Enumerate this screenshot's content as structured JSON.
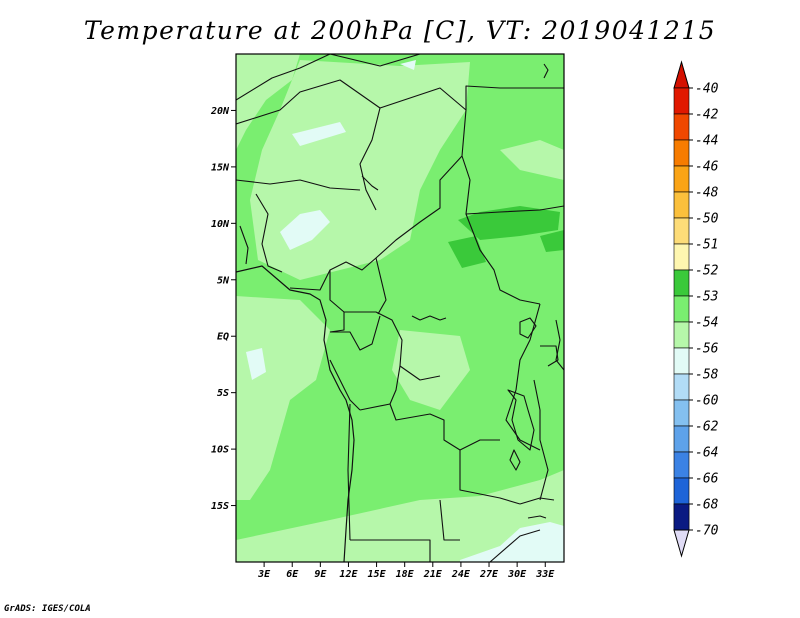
{
  "title": "Temperature at 200hPa [C], VT: 2019041215",
  "footer": "GrADS: IGES/COLA",
  "map": {
    "lon_range": [
      0,
      35
    ],
    "lat_range": [
      -20,
      25
    ],
    "lat_ticks": [
      {
        "value": 20,
        "label": "20N"
      },
      {
        "value": 15,
        "label": "15N"
      },
      {
        "value": 10,
        "label": "10N"
      },
      {
        "value": 5,
        "label": "5N"
      },
      {
        "value": 0,
        "label": "EQ"
      },
      {
        "value": -5,
        "label": "5S"
      },
      {
        "value": -10,
        "label": "10S"
      },
      {
        "value": -15,
        "label": "15S"
      }
    ],
    "lon_ticks": [
      {
        "value": 3,
        "label": "3E"
      },
      {
        "value": 6,
        "label": "6E"
      },
      {
        "value": 9,
        "label": "9E"
      },
      {
        "value": 12,
        "label": "12E"
      },
      {
        "value": 15,
        "label": "15E"
      },
      {
        "value": 18,
        "label": "18E"
      },
      {
        "value": 21,
        "label": "21E"
      },
      {
        "value": 24,
        "label": "24E"
      },
      {
        "value": 27,
        "label": "27E"
      },
      {
        "value": 30,
        "label": "30E"
      },
      {
        "value": 33,
        "label": "33E"
      }
    ],
    "field_colors": {
      "minus52": "#3ac93a",
      "minus53": "#7aee70",
      "minus54": "#b6f7aa",
      "minus56": "#e2fbf6"
    }
  },
  "colorbar": {
    "levels": [
      {
        "label": "-40",
        "color": "#e01800"
      },
      {
        "label": "-42",
        "color": "#f04800"
      },
      {
        "label": "-44",
        "color": "#f77c00"
      },
      {
        "label": "-46",
        "color": "#faa416"
      },
      {
        "label": "-48",
        "color": "#fbc03c"
      },
      {
        "label": "-50",
        "color": "#fddc78"
      },
      {
        "label": "-51",
        "color": "#fef6b0"
      },
      {
        "label": "-52",
        "color": "#3ac93a"
      },
      {
        "label": "-53",
        "color": "#7aee70"
      },
      {
        "label": "-54",
        "color": "#b6f7aa"
      },
      {
        "label": "-56",
        "color": "#e2fbf6"
      },
      {
        "label": "-58",
        "color": "#b2dcf6"
      },
      {
        "label": "-60",
        "color": "#84c0f0"
      },
      {
        "label": "-62",
        "color": "#5ea2ea"
      },
      {
        "label": "-64",
        "color": "#3b82e4"
      },
      {
        "label": "-66",
        "color": "#1e64d8"
      },
      {
        "label": "-68",
        "color": "#0e4cc8"
      },
      {
        "label": "-70",
        "color": "#0a1a82"
      }
    ],
    "top_arrow_color": "#d41000",
    "bottom_arrow_color": "#e0dcf6"
  }
}
